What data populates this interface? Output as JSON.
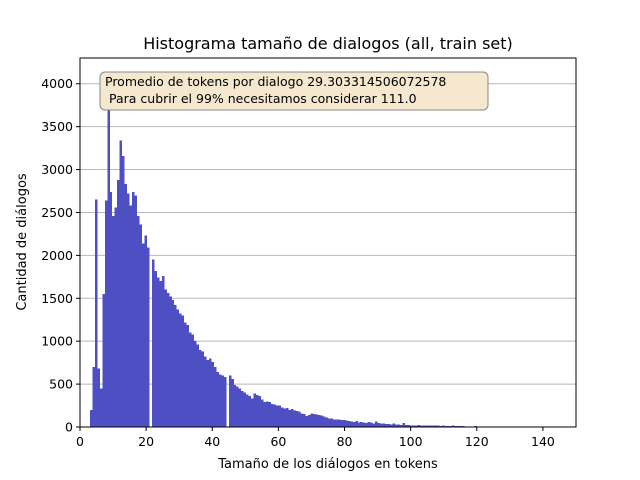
{
  "chart_data": {
    "type": "bar",
    "title": "Histograma tamaño de dialogos (all, train set)",
    "xlabel": "Tamaño de los diálogos en tokens",
    "ylabel": "Cantidad de diálogos",
    "xlim": [
      0,
      150
    ],
    "ylim": [
      0,
      4300
    ],
    "xticks": [
      "0",
      "20",
      "40",
      "60",
      "80",
      "100",
      "120",
      "140"
    ],
    "yticks": [
      "0",
      "500",
      "1000",
      "1500",
      "2000",
      "2500",
      "3000",
      "3500",
      "4000"
    ],
    "grid": "horizontal",
    "bar_color": "#4f4fc4",
    "bin_width": 0.75,
    "bin_edges": [
      3,
      150
    ],
    "values": [
      200,
      700,
      2650,
      680,
      450,
      1550,
      2640,
      4100,
      2740,
      2460,
      2560,
      2880,
      3340,
      3160,
      2830,
      2720,
      2580,
      2740,
      2700,
      2460,
      2360,
      2140,
      2230,
      2090,
      0,
      1950,
      1820,
      1740,
      1700,
      1760,
      1600,
      1560,
      1520,
      1480,
      1420,
      1370,
      1320,
      1300,
      1220,
      1190,
      1100,
      1080,
      1000,
      960,
      900,
      880,
      820,
      780,
      800,
      760,
      700,
      640,
      610,
      600,
      580,
      0,
      600,
      560,
      490,
      470,
      450,
      420,
      400,
      380,
      360,
      330,
      390,
      370,
      360,
      320,
      290,
      300,
      290,
      270,
      260,
      250,
      250,
      230,
      215,
      220,
      200,
      210,
      190,
      185,
      180,
      160,
      150,
      130,
      140,
      160,
      150,
      145,
      140,
      135,
      120,
      110,
      100,
      100,
      90,
      85,
      85,
      80,
      80,
      75,
      70,
      65,
      60,
      70,
      55,
      60,
      50,
      45,
      60,
      50,
      40,
      65,
      45,
      40,
      40,
      35,
      35,
      30,
      40,
      30,
      30,
      25,
      45,
      25,
      25,
      20,
      20,
      20,
      25,
      20,
      20,
      15,
      15,
      15,
      15,
      20,
      15,
      10,
      15,
      10,
      10,
      10,
      15,
      10,
      10,
      10,
      10,
      8,
      8,
      8,
      8,
      10,
      6,
      6,
      6,
      5,
      5,
      5,
      5,
      5,
      4,
      4,
      4,
      4,
      4,
      3,
      3,
      3,
      3,
      3,
      3,
      2,
      2,
      2,
      2,
      2,
      2,
      2,
      2,
      2,
      1,
      1,
      1,
      1,
      1,
      1,
      1,
      1,
      1,
      1,
      1,
      1,
      1,
      1,
      1,
      1,
      1,
      1,
      1
    ],
    "annotation": {
      "line1": "Promedio de tokens por dialogo 29.303314506072578",
      "line2": "Para cubrir el 99% necesitamos considerar 111.0"
    }
  }
}
